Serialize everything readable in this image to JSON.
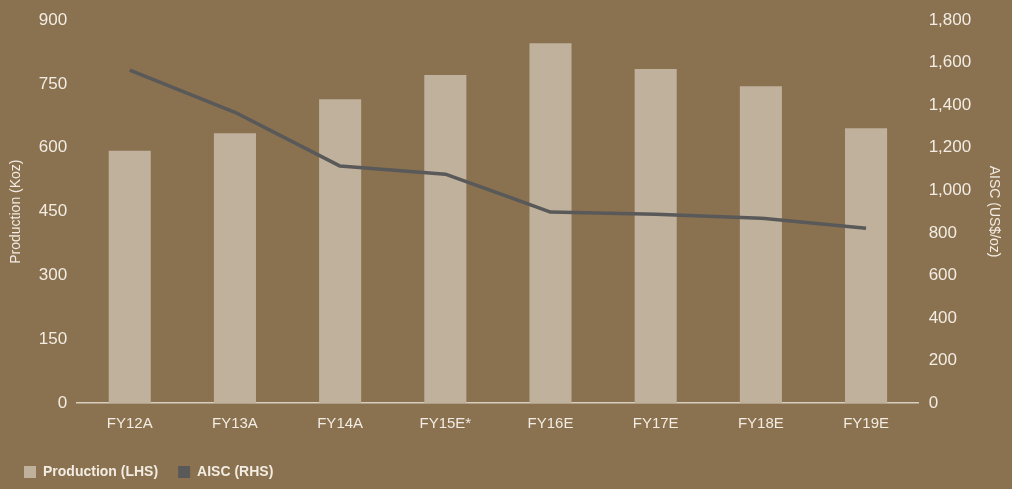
{
  "chart_data": {
    "type": "bar",
    "ylabel": "Production (Koz)",
    "y2label": "AISC (US$/oz)",
    "categories": [
      "FY12A",
      "FY13A",
      "FY14A",
      "FY15E*",
      "FY16E",
      "FY17E",
      "FY18E",
      "FY19E"
    ],
    "series": [
      {
        "name": "Production (LHS)",
        "color": "#bfb19c",
        "values": [
          593,
          634,
          714,
          771,
          846,
          785,
          745,
          646
        ]
      },
      {
        "name": "AISC (RHS)",
        "type": "line",
        "axis": "y2",
        "color": "#595959",
        "values": [
          1565,
          1367,
          1114,
          1076,
          898,
          888,
          869,
          822
        ]
      }
    ],
    "ylim": [
      0,
      900
    ],
    "yticks": [
      0,
      150,
      300,
      450,
      600,
      750,
      900
    ],
    "y2lim": [
      0,
      1800
    ],
    "y2ticks": [
      0,
      200,
      400,
      600,
      800,
      {
        "value": 1000,
        "label": "1,000"
      },
      {
        "value": 1200,
        "label": "1,200"
      },
      {
        "value": 1400,
        "label": "1,400"
      },
      {
        "value": 1600,
        "label": "1,600"
      },
      {
        "value": 1800,
        "label": "1,800"
      }
    ],
    "grid": false,
    "legend": "bottom left",
    "marker": "none",
    "line_style": "solid"
  }
}
